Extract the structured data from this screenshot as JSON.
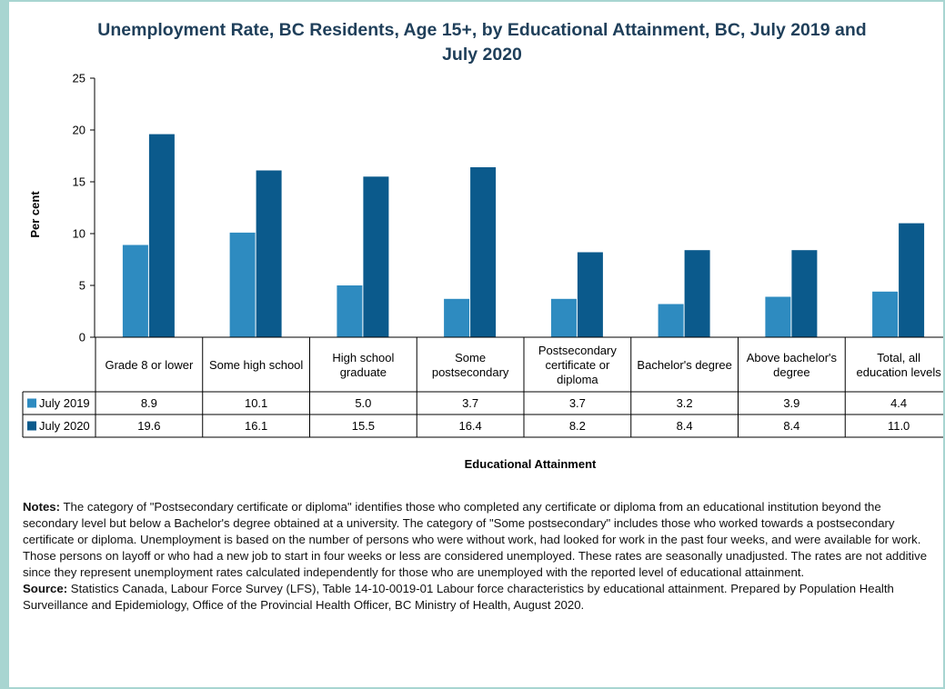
{
  "colors": {
    "frame": "#a8d5d1",
    "series_2019": "#2e8bc0",
    "series_2020": "#0b5a8c",
    "title": "#1f3f5a"
  },
  "chart_data": {
    "type": "bar",
    "title": "Unemployment Rate, BC Residents, Age 15+, by Educational Attainment, BC, July 2019 and July 2020",
    "xlabel": "Educational Attainment",
    "ylabel": "Per cent",
    "ylim": [
      0,
      25
    ],
    "yticks": [
      0,
      5,
      10,
      15,
      20,
      25
    ],
    "grid": false,
    "legend": "in data table",
    "categories": [
      "Grade 8 or lower",
      "Some high school",
      "High school graduate",
      "Some postsecondary",
      "Postsecondary certificate or diploma",
      "Bachelor's degree",
      "Above bachelor's degree",
      "Total, all education levels"
    ],
    "series": [
      {
        "name": "July 2019",
        "values": [
          8.9,
          10.1,
          5.0,
          3.7,
          3.7,
          3.2,
          3.9,
          4.4
        ],
        "labels": [
          "8.9",
          "10.1",
          "5.0",
          "3.7",
          "3.7",
          "3.2",
          "3.9",
          "4.4"
        ]
      },
      {
        "name": "July 2020",
        "values": [
          19.6,
          16.1,
          15.5,
          16.4,
          8.2,
          8.4,
          8.4,
          11.0
        ],
        "labels": [
          "19.6",
          "16.1",
          "15.5",
          "16.4",
          "8.2",
          "8.4",
          "8.4",
          "11.0"
        ]
      }
    ]
  },
  "notes": {
    "notes_label": "Notes:",
    "notes_text": " The category of \"Postsecondary certificate or diploma\" identifies those who completed any certificate or diploma from an educational institution beyond the secondary level but below a Bachelor's degree obtained at a university. The category of \"Some postsecondary\" includes those who worked towards a postsecondary certificate or diploma. Unemployment is based on the number of persons who were without work, had looked for work in the past four weeks, and were available for work. Those persons on layoff or who had a new job to start in four weeks or less are considered unemployed. These rates are seasonally unadjusted. The rates are not additive since they represent unemployment rates calculated independently for those who are unemployed with the reported level of educational attainment.",
    "source_label": "Source:",
    "source_text": " Statistics Canada, Labour Force Survey (LFS), Table 14-10-0019-01 Labour force characteristics by educational attainment. Prepared by Population Health Surveillance and Epidemiology, Office of the Provincial Health Officer, BC Ministry of Health, August 2020."
  }
}
